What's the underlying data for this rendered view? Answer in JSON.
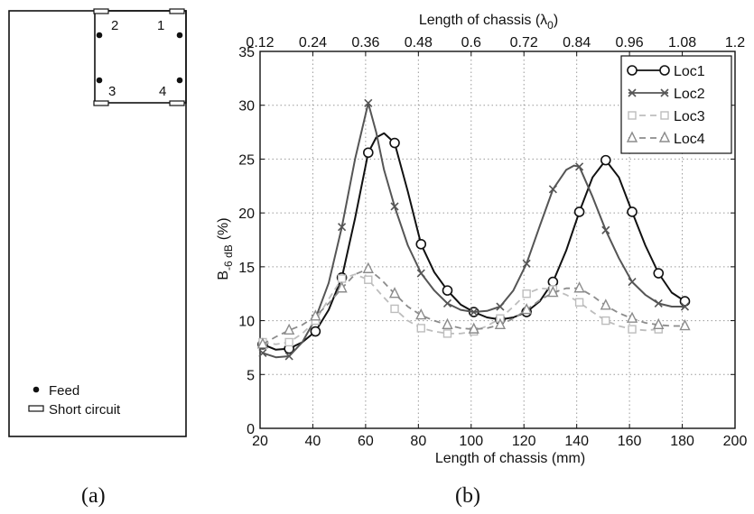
{
  "diagram": {
    "port_labels": [
      "1",
      "2",
      "3",
      "4"
    ],
    "legend_feed": "Feed",
    "legend_short": "Short circuit"
  },
  "captions": {
    "a": "(a)",
    "b": "(b)"
  },
  "chart_data": {
    "type": "line",
    "xlabel": "Length of chassis (mm)",
    "ylabel_main": "B",
    "ylabel_sub": "-6 dB",
    "ylabel_unit": "(%)",
    "top_xlabel_main": "Length of chassis (λ",
    "top_xlabel_sub": "0",
    "top_xlabel_end": ")",
    "xlim": [
      20,
      200
    ],
    "ylim": [
      0,
      35
    ],
    "xticks": [
      20,
      40,
      60,
      80,
      100,
      120,
      140,
      160,
      180,
      200
    ],
    "yticks": [
      0,
      5,
      10,
      15,
      20,
      25,
      30,
      35
    ],
    "top_xticks": [
      {
        "label": "0.12",
        "x": 20
      },
      {
        "label": "0.24",
        "x": 40
      },
      {
        "label": "0.36",
        "x": 60
      },
      {
        "label": "0.48",
        "x": 80
      },
      {
        "label": "0.6",
        "x": 100
      },
      {
        "label": "0.72",
        "x": 120
      },
      {
        "label": "0.84",
        "x": 140
      },
      {
        "label": "0.96",
        "x": 160
      },
      {
        "label": "1.08",
        "x": 180
      },
      {
        "label": "1.2",
        "x": 200
      }
    ],
    "grid": true,
    "legend_position": "top-right",
    "x": [
      21,
      31,
      41,
      51,
      61,
      71,
      81,
      91,
      101,
      111,
      121,
      131,
      141,
      151,
      161,
      171,
      181
    ],
    "series": [
      {
        "name": "Loc1",
        "color": "#111111",
        "dash": "",
        "marker": "circle",
        "values": [
          7.8,
          7.4,
          9.0,
          14.0,
          25.6,
          26.5,
          17.1,
          12.8,
          10.8,
          10.1,
          10.8,
          13.6,
          20.1,
          24.9,
          20.1,
          14.4,
          11.8
        ],
        "curve": [
          [
            21,
            7.8
          ],
          [
            26,
            7.3
          ],
          [
            31,
            7.4
          ],
          [
            36,
            8.0
          ],
          [
            41,
            9.0
          ],
          [
            46,
            11.0
          ],
          [
            51,
            14.0
          ],
          [
            56,
            19.5
          ],
          [
            61,
            25.6
          ],
          [
            64,
            27.0
          ],
          [
            67,
            27.4
          ],
          [
            71,
            26.5
          ],
          [
            76,
            22.0
          ],
          [
            81,
            17.1
          ],
          [
            86,
            14.5
          ],
          [
            91,
            12.8
          ],
          [
            96,
            11.5
          ],
          [
            101,
            10.8
          ],
          [
            106,
            10.3
          ],
          [
            111,
            10.1
          ],
          [
            116,
            10.3
          ],
          [
            121,
            10.8
          ],
          [
            126,
            11.8
          ],
          [
            131,
            13.6
          ],
          [
            136,
            16.5
          ],
          [
            141,
            20.1
          ],
          [
            146,
            23.3
          ],
          [
            151,
            24.9
          ],
          [
            156,
            23.3
          ],
          [
            161,
            20.1
          ],
          [
            166,
            17.0
          ],
          [
            171,
            14.4
          ],
          [
            176,
            12.6
          ],
          [
            181,
            11.8
          ]
        ]
      },
      {
        "name": "Loc2",
        "color": "#555555",
        "dash": "",
        "marker": "x",
        "values": [
          7.0,
          6.7,
          10.2,
          18.7,
          30.2,
          20.6,
          14.4,
          11.6,
          10.8,
          11.3,
          15.3,
          22.2,
          24.3,
          18.4,
          13.6,
          11.6,
          11.3
        ],
        "curve": [
          [
            21,
            7.0
          ],
          [
            26,
            6.6
          ],
          [
            31,
            6.7
          ],
          [
            36,
            8.0
          ],
          [
            41,
            10.2
          ],
          [
            46,
            13.5
          ],
          [
            51,
            18.7
          ],
          [
            56,
            25.0
          ],
          [
            61,
            30.2
          ],
          [
            64,
            27.5
          ],
          [
            67,
            24.0
          ],
          [
            71,
            20.6
          ],
          [
            76,
            17.0
          ],
          [
            81,
            14.4
          ],
          [
            86,
            12.8
          ],
          [
            91,
            11.6
          ],
          [
            96,
            11.0
          ],
          [
            101,
            10.8
          ],
          [
            106,
            10.9
          ],
          [
            111,
            11.3
          ],
          [
            116,
            12.8
          ],
          [
            121,
            15.3
          ],
          [
            126,
            18.8
          ],
          [
            131,
            22.2
          ],
          [
            136,
            24.0
          ],
          [
            139,
            24.4
          ],
          [
            141,
            24.3
          ],
          [
            146,
            21.5
          ],
          [
            151,
            18.4
          ],
          [
            156,
            15.8
          ],
          [
            161,
            13.6
          ],
          [
            166,
            12.4
          ],
          [
            171,
            11.6
          ],
          [
            176,
            11.3
          ],
          [
            181,
            11.3
          ]
        ]
      },
      {
        "name": "Loc3",
        "color": "#bdbdbd",
        "dash": "7 5",
        "marker": "square",
        "values": [
          8.0,
          8.0,
          10.0,
          13.9,
          13.8,
          11.1,
          9.3,
          8.8,
          9.0,
          10.2,
          12.5,
          12.9,
          11.7,
          10.0,
          9.2,
          9.2,
          null
        ],
        "curve": [
          [
            21,
            8.0
          ],
          [
            26,
            7.8
          ],
          [
            31,
            8.0
          ],
          [
            36,
            8.8
          ],
          [
            41,
            10.0
          ],
          [
            46,
            12.0
          ],
          [
            51,
            13.9
          ],
          [
            56,
            14.3
          ],
          [
            61,
            13.8
          ],
          [
            66,
            12.4
          ],
          [
            71,
            11.1
          ],
          [
            76,
            10.0
          ],
          [
            81,
            9.3
          ],
          [
            86,
            9.0
          ],
          [
            91,
            8.8
          ],
          [
            96,
            8.8
          ],
          [
            101,
            9.0
          ],
          [
            106,
            9.5
          ],
          [
            111,
            10.2
          ],
          [
            116,
            11.3
          ],
          [
            121,
            12.5
          ],
          [
            126,
            13.0
          ],
          [
            131,
            12.9
          ],
          [
            136,
            12.4
          ],
          [
            141,
            11.7
          ],
          [
            146,
            10.8
          ],
          [
            151,
            10.0
          ],
          [
            156,
            9.5
          ],
          [
            161,
            9.2
          ],
          [
            166,
            9.1
          ],
          [
            171,
            9.2
          ]
        ]
      },
      {
        "name": "Loc4",
        "color": "#8c8c8c",
        "dash": "7 5",
        "marker": "triangle",
        "values": [
          7.8,
          9.1,
          10.4,
          13.0,
          14.8,
          12.5,
          10.5,
          9.6,
          9.2,
          9.6,
          11.0,
          12.6,
          13.0,
          11.4,
          10.2,
          9.6,
          9.5
        ],
        "curve": [
          [
            21,
            7.8
          ],
          [
            26,
            8.5
          ],
          [
            31,
            9.1
          ],
          [
            36,
            9.6
          ],
          [
            41,
            10.4
          ],
          [
            46,
            11.6
          ],
          [
            51,
            13.0
          ],
          [
            56,
            14.3
          ],
          [
            61,
            14.8
          ],
          [
            66,
            13.8
          ],
          [
            71,
            12.5
          ],
          [
            76,
            11.3
          ],
          [
            81,
            10.5
          ],
          [
            86,
            10.0
          ],
          [
            91,
            9.6
          ],
          [
            96,
            9.3
          ],
          [
            101,
            9.2
          ],
          [
            106,
            9.3
          ],
          [
            111,
            9.6
          ],
          [
            116,
            10.2
          ],
          [
            121,
            11.0
          ],
          [
            126,
            11.9
          ],
          [
            131,
            12.6
          ],
          [
            136,
            13.0
          ],
          [
            141,
            13.0
          ],
          [
            146,
            12.3
          ],
          [
            151,
            11.4
          ],
          [
            156,
            10.7
          ],
          [
            161,
            10.2
          ],
          [
            166,
            9.8
          ],
          [
            171,
            9.6
          ],
          [
            176,
            9.5
          ],
          [
            181,
            9.5
          ]
        ]
      }
    ]
  }
}
